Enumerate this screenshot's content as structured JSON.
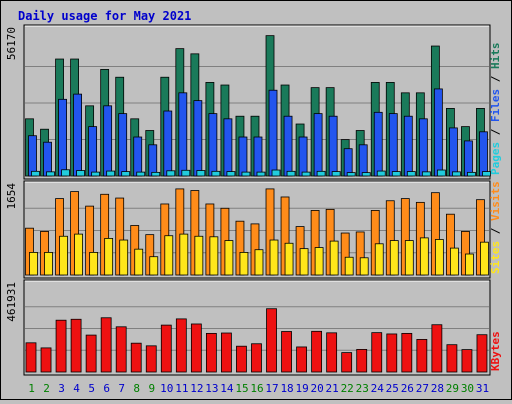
{
  "chart_data": {
    "type": "bar",
    "title": "Daily usage for May 2021",
    "categories": [
      "1",
      "2",
      "3",
      "4",
      "5",
      "6",
      "7",
      "8",
      "9",
      "10",
      "11",
      "12",
      "13",
      "14",
      "15",
      "16",
      "17",
      "18",
      "19",
      "20",
      "21",
      "22",
      "23",
      "24",
      "25",
      "26",
      "27",
      "28",
      "29",
      "30",
      "31"
    ],
    "weekend_days": [
      "1",
      "2",
      "8",
      "9",
      "15",
      "16",
      "22",
      "23",
      "29",
      "30"
    ],
    "panels": [
      {
        "id": "top",
        "max_label": "56170",
        "ylim": [
          0,
          56170
        ],
        "legend": [
          "Pages",
          "Files",
          "Hits"
        ],
        "series": [
          {
            "name": "Hits",
            "color": "#1a7a5a",
            "values": [
              22000,
              18000,
              45000,
              45000,
              27000,
              41000,
              38000,
              22000,
              17500,
              38000,
              49000,
              47000,
              36000,
              35000,
              23000,
              23000,
              54000,
              35000,
              20000,
              34000,
              34000,
              14000,
              17500,
              36000,
              36000,
              32000,
              32000,
              50000,
              26000,
              19000,
              26000
            ]
          },
          {
            "name": "Files",
            "color": "#2255ee",
            "values": [
              15500,
              13000,
              29500,
              31500,
              19000,
              27000,
              24000,
              15000,
              12000,
              25000,
              32000,
              29000,
              24000,
              22000,
              15000,
              15000,
              33000,
              23000,
              15000,
              24000,
              23000,
              10500,
              12000,
              24500,
              24000,
              23000,
              22000,
              33500,
              18500,
              13500,
              17000
            ]
          },
          {
            "name": "Pages",
            "color": "#22ccdd",
            "values": [
              1800,
              1600,
              2400,
              2100,
              1500,
              1900,
              1700,
              1500,
              1400,
              2000,
              2200,
              2100,
              1800,
              1700,
              1500,
              1500,
              2300,
              1800,
              1500,
              1800,
              1700,
              1300,
              1300,
              1900,
              1700,
              1700,
              1600,
              2300,
              1600,
              1400,
              1700
            ]
          }
        ]
      },
      {
        "id": "middle",
        "max_label": "1654",
        "ylim": [
          0,
          1654
        ],
        "legend": [
          "Sites",
          "Visits"
        ],
        "series": [
          {
            "name": "Visits",
            "color": "#ff8c1a",
            "values": [
              870,
              810,
              1420,
              1550,
              1280,
              1500,
              1430,
              920,
              750,
              1320,
              1600,
              1570,
              1320,
              1240,
              1000,
              950,
              1600,
              1450,
              900,
              1200,
              1220,
              780,
              800,
              1200,
              1380,
              1420,
              1350,
              1530,
              1130,
              810,
              1400
            ]
          },
          {
            "name": "Sites",
            "color": "#ffe61a",
            "values": [
              420,
              420,
              720,
              760,
              420,
              680,
              650,
              480,
              340,
              730,
              760,
              720,
              710,
              640,
              420,
              470,
              650,
              590,
              490,
              510,
              630,
              330,
              320,
              580,
              640,
              640,
              690,
              660,
              500,
              390,
              610
            ]
          }
        ]
      },
      {
        "id": "bottom",
        "max_label": "461931",
        "ylim": [
          0,
          461931
        ],
        "legend": [
          "KBytes"
        ],
        "series": [
          {
            "name": "KBytes",
            "color": "#ee1111",
            "values": [
              155000,
              128000,
              275000,
              280000,
              196000,
              288000,
              240000,
              153000,
              139000,
              249000,
              282000,
              255000,
              205000,
              207000,
              137000,
              150000,
              336000,
              215000,
              133000,
              216000,
              208000,
              103000,
              120000,
              209000,
              202000,
              205000,
              173000,
              251000,
              145000,
              119000,
              198000
            ]
          }
        ]
      }
    ],
    "colors": {
      "background": "#c0c0c0",
      "title": "#0000cc",
      "grid": "#808080",
      "axis_weekday": "#008000",
      "axis_weekend": "#0000cc",
      "legend_separator": "#000000"
    }
  }
}
